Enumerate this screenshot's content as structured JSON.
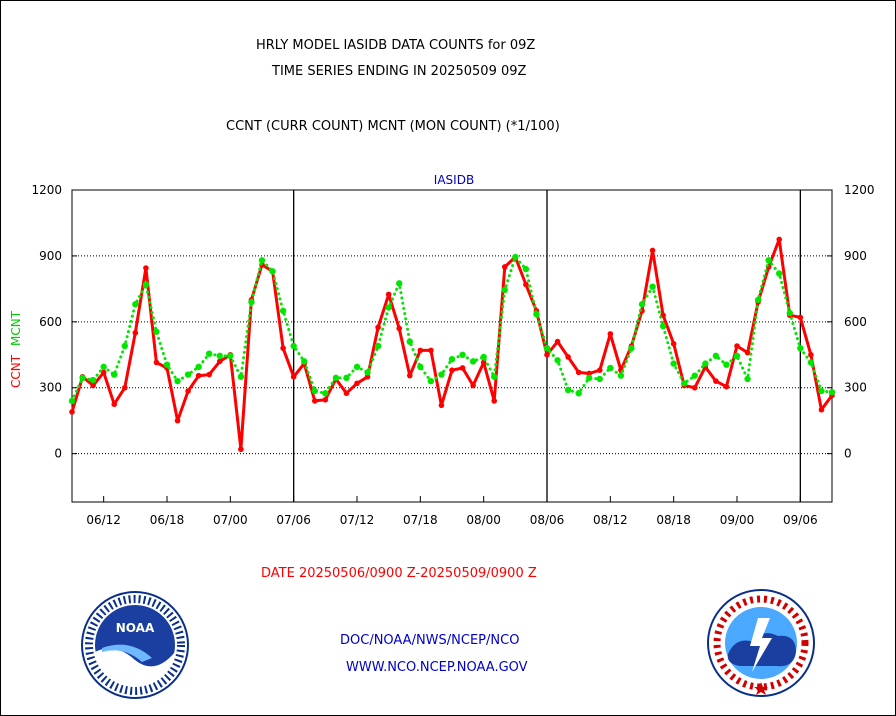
{
  "header": {
    "title_line1": "HRLY MODEL IASIDB DATA COUNTS for 09Z",
    "title_line2": "TIME SERIES ENDING IN 20250509 09Z",
    "subtitle": "CCNT (CURR COUNT) MCNT (MON COUNT) (*1/100)"
  },
  "footer": {
    "date_range": "DATE 20250506/0900 Z-20250509/0900 Z",
    "org_path": "DOC/NOAA/NWS/NCEP/NCO",
    "website": "WWW.NCO.NCEP.NOAA.GOV"
  },
  "logos": {
    "left": {
      "icon": "noaa-logo-icon",
      "text": "NOAA"
    },
    "right": {
      "icon": "nws-logo-icon"
    }
  },
  "colors": {
    "ccnt": "#ff0000",
    "mcnt": "#00e600",
    "title": "#000000",
    "footer_text": "#0000c8",
    "date_text": "#ff0000"
  },
  "chart_data": {
    "type": "line",
    "title": "IASIDB",
    "ylabel_left": [
      "CCNT",
      "MCNT"
    ],
    "ylim": [
      -220,
      1200
    ],
    "yticks": [
      0,
      300,
      600,
      900,
      1200
    ],
    "xticks": [
      "06/12",
      "06/18",
      "07/00",
      "07/06",
      "07/12",
      "07/18",
      "08/00",
      "08/06",
      "08/12",
      "08/18",
      "09/00",
      "09/06"
    ],
    "xtick_index": [
      3,
      9,
      15,
      21,
      27,
      33,
      39,
      45,
      51,
      57,
      63,
      69
    ],
    "day_boundaries_index": [
      21,
      45,
      69
    ],
    "grid": true,
    "series": [
      {
        "name": "CCNT",
        "color": "#ff0000",
        "style": "solid",
        "values": [
          190,
          350,
          310,
          370,
          225,
          300,
          550,
          845,
          415,
          390,
          150,
          285,
          355,
          360,
          420,
          450,
          20,
          700,
          860,
          830,
          480,
          350,
          410,
          240,
          245,
          340,
          275,
          320,
          350,
          575,
          725,
          570,
          355,
          470,
          470,
          220,
          380,
          390,
          310,
          415,
          240,
          850,
          895,
          770,
          650,
          450,
          510,
          440,
          370,
          365,
          380,
          545,
          380,
          490,
          650,
          925,
          630,
          500,
          310,
          300,
          395,
          330,
          305,
          490,
          460,
          690,
          850,
          975,
          630,
          620,
          450,
          200,
          265
        ]
      },
      {
        "name": "MCNT",
        "color": "#00e600",
        "style": "dotted",
        "values": [
          240,
          345,
          335,
          395,
          360,
          490,
          680,
          770,
          555,
          405,
          330,
          360,
          395,
          455,
          445,
          445,
          350,
          690,
          880,
          830,
          650,
          490,
          420,
          285,
          275,
          345,
          345,
          395,
          370,
          490,
          665,
          775,
          510,
          395,
          330,
          360,
          430,
          450,
          420,
          440,
          350,
          745,
          895,
          840,
          635,
          480,
          425,
          290,
          275,
          345,
          340,
          390,
          355,
          480,
          680,
          760,
          580,
          410,
          320,
          355,
          410,
          445,
          405,
          445,
          340,
          700,
          880,
          820,
          640,
          480,
          415,
          285,
          280
        ]
      }
    ]
  }
}
